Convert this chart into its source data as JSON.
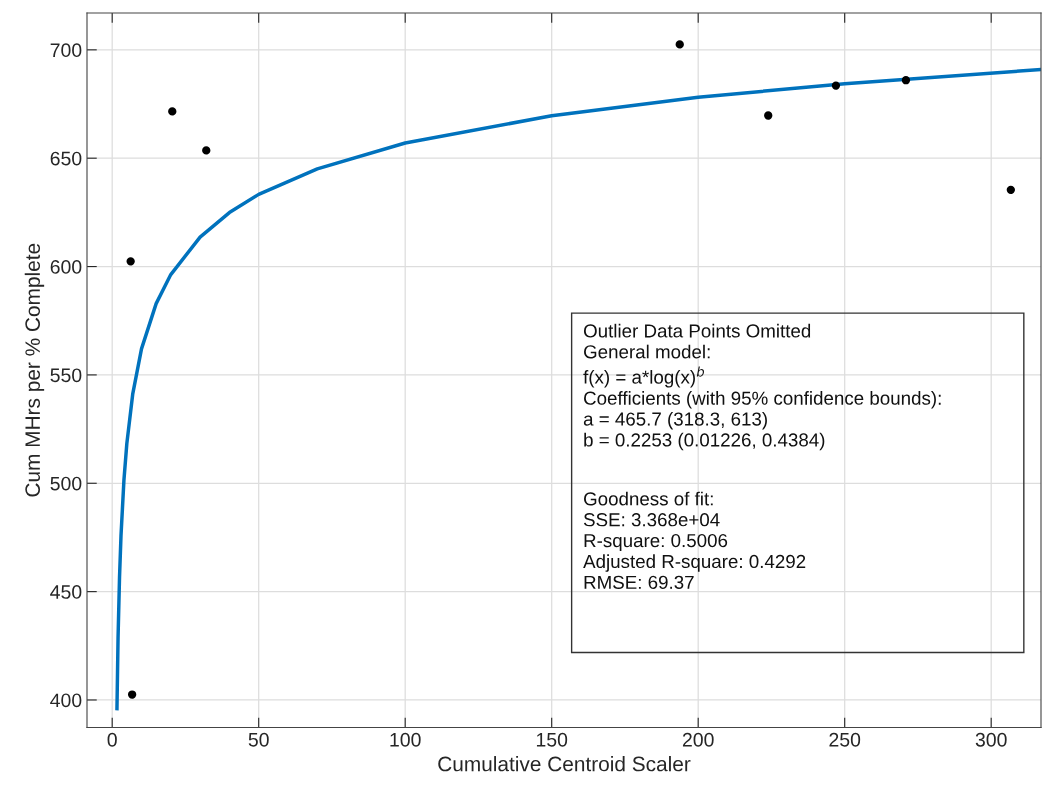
{
  "chart_data": {
    "type": "scatter",
    "xlabel": "Cumulative Centroid Scaler",
    "ylabel": "Cum MHrs per % Complete",
    "xlim": [
      -8.6,
      317
    ],
    "ylim": [
      387.3,
      717
    ],
    "xticks": [
      0,
      50,
      100,
      150,
      200,
      250,
      300
    ],
    "yticks": [
      400,
      450,
      500,
      550,
      600,
      650,
      700
    ],
    "grid": true,
    "series": [
      {
        "color": "#000000",
        "marker": "circle",
        "x": [
          6.3,
          20.5,
          32.1,
          6.8,
          193.7,
          223.9,
          247,
          270.9,
          306.7
        ],
        "values": [
          602.4,
          671.6,
          653.6,
          402.5,
          702.5,
          669.7,
          683.5,
          686,
          635.4
        ]
      },
      {
        "type": "line",
        "color": "#0072bd",
        "line_style": "solid",
        "x": [
          1.63,
          2,
          2.5,
          3,
          4,
          5,
          7,
          10,
          15,
          20,
          30,
          40,
          50,
          70,
          100,
          150,
          200,
          250,
          317
        ],
        "values": [
          396,
          428.8,
          456.6,
          475.7,
          501.3,
          518.4,
          541.1,
          562.0,
          582.9,
          596.3,
          613.6,
          624.9,
          633.3,
          645.1,
          657.0,
          669.6,
          678.1,
          684.4,
          690.9
        ]
      }
    ],
    "annotations": [
      "Outlier Data Points Omitted\nGeneral model:\nf(x) = a*log(x)$^{b}$\nCoefficients (with 95% confidence bounds):\na = 465.7 (318.3, 613)\nb = 0.2253 (0.01226, 0.4384)",
      "Goodness of fit:\nSSE: 3.368e+04\nR-square: 0.5006\nAdjusted R-square: 0.4292\nRMSE: 69.37"
    ]
  }
}
